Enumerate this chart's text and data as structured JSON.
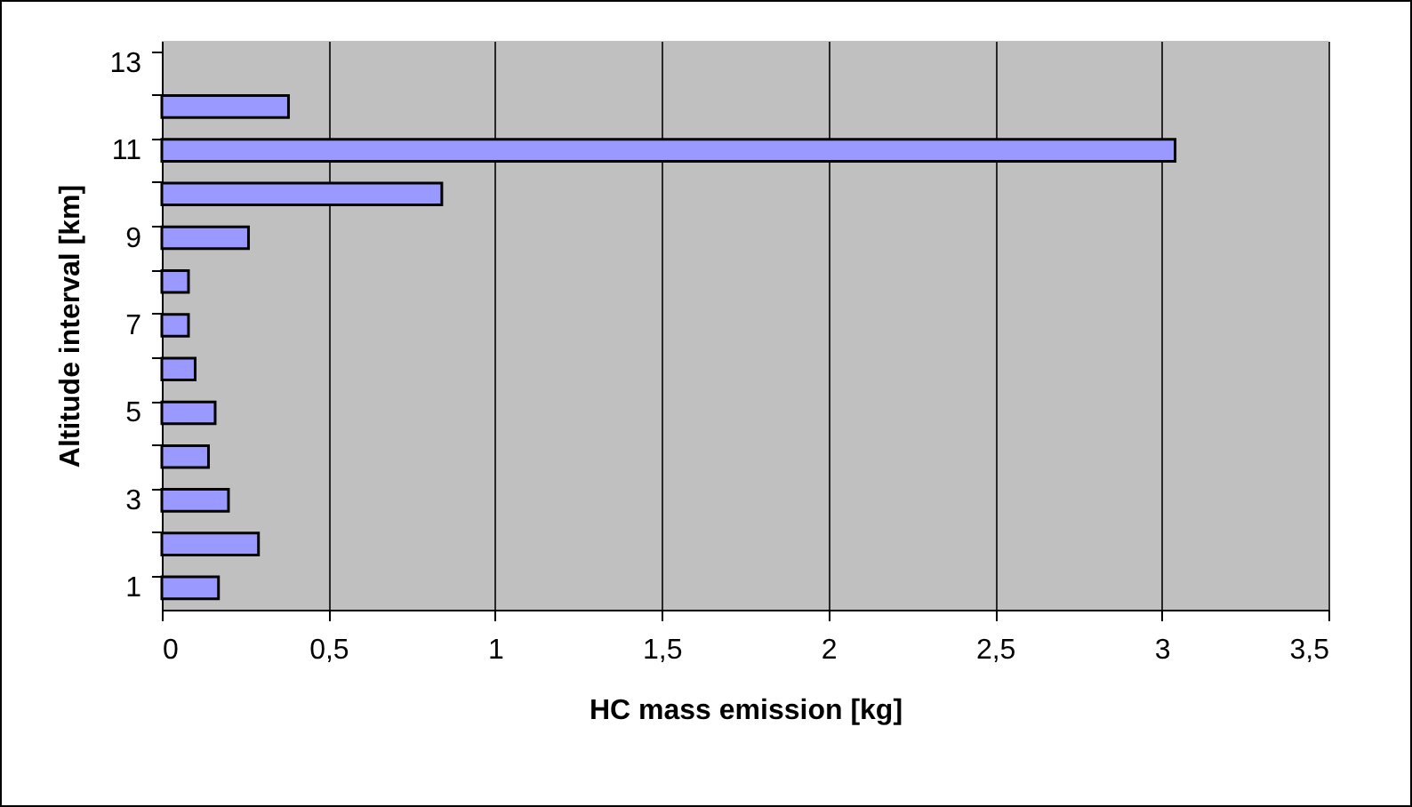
{
  "chart_data": {
    "type": "bar",
    "orientation": "horizontal",
    "xlabel": "HC mass emission [kg]",
    "ylabel": "Altitude interval [km]",
    "categories": [
      "13",
      null,
      "11",
      null,
      "9",
      null,
      "7",
      null,
      "5",
      null,
      "3",
      null,
      "1"
    ],
    "values": [
      null,
      0.38,
      3.04,
      0.84,
      0.26,
      0.08,
      0.08,
      0.1,
      0.16,
      0.14,
      0.2,
      0.29,
      0.17
    ],
    "color": "#9999ff",
    "xlim": [
      0,
      3.5
    ],
    "xticks": [
      0,
      {
        "value": 0.5,
        "label": "0,5"
      },
      1,
      {
        "value": 1.5,
        "label": "1,5"
      },
      2,
      {
        "value": 2.5,
        "label": "2,5"
      },
      3,
      {
        "value": 3.5,
        "label": "3,5"
      }
    ],
    "grid": "x"
  }
}
